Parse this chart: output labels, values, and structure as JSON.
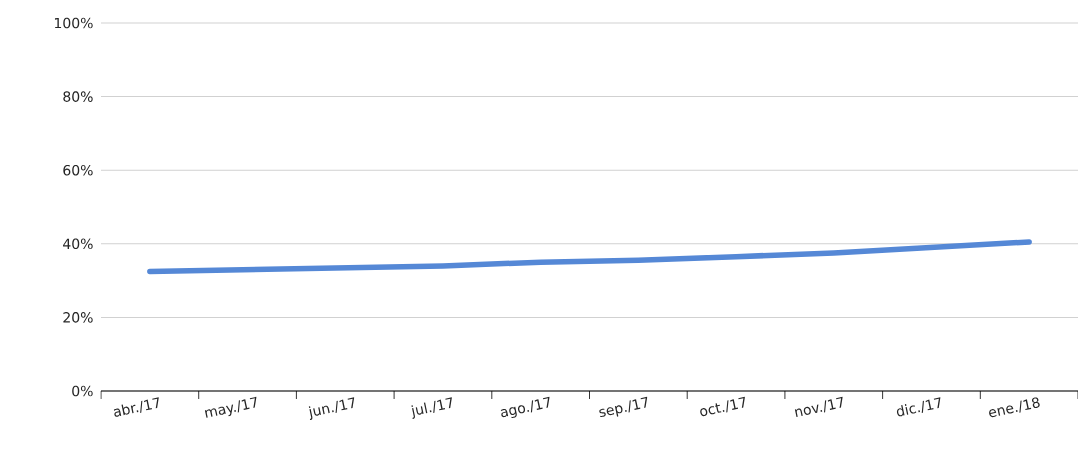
{
  "chart_data": {
    "type": "line",
    "categories": [
      "abr./17",
      "may./17",
      "jun./17",
      "jul./17",
      "ago./17",
      "sep./17",
      "oct./17",
      "nov./17",
      "dic./17",
      "ene./18"
    ],
    "series": [
      {
        "color": "#5588d6",
        "values": [
          32.5,
          33,
          33.5,
          34,
          35,
          35.5,
          36.5,
          37.5,
          39,
          40.5
        ]
      }
    ],
    "ylim": [
      0,
      100
    ],
    "yticks": [
      {
        "value": 0,
        "label": "0%"
      },
      {
        "value": 20,
        "label": "20%"
      },
      {
        "value": 40,
        "label": "40%"
      },
      {
        "value": 60,
        "label": "60%"
      },
      {
        "value": 80,
        "label": "80%"
      },
      {
        "value": 100,
        "label": "100%"
      }
    ],
    "grid": "y",
    "marker": "none",
    "line_style": "solid"
  }
}
